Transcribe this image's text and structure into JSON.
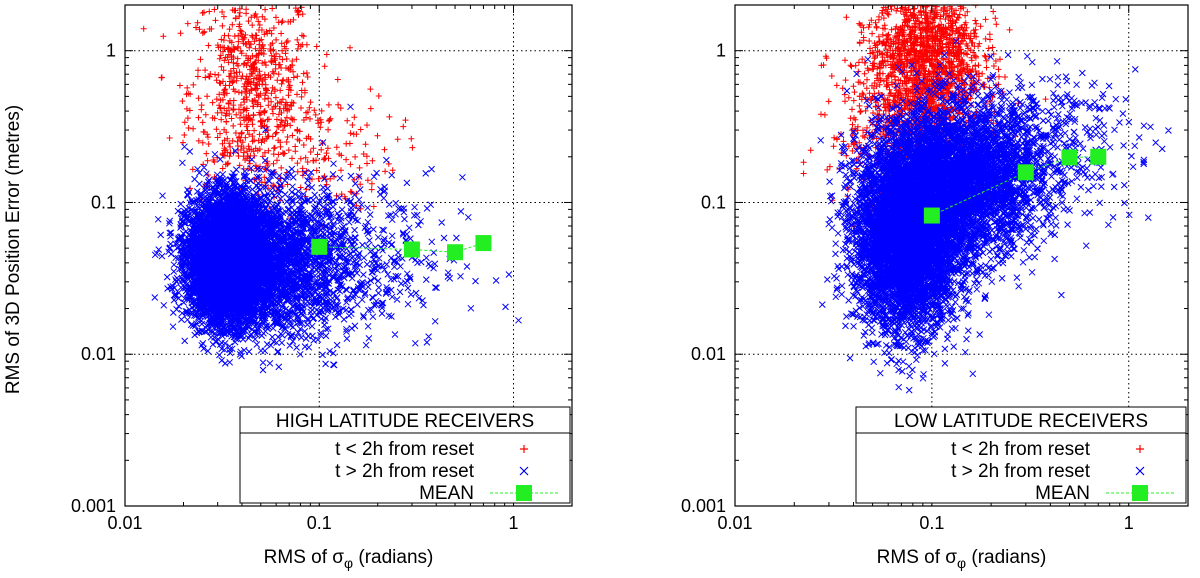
{
  "chart_data": [
    {
      "type": "scatter",
      "panel": "left",
      "xscale": "log",
      "yscale": "log",
      "xlim": [
        0.01,
        2
      ],
      "ylim": [
        0.001,
        2
      ],
      "grid": true,
      "xlabel": "RMS of σφ (radians)",
      "ylabel": "RMS of 3D Position Error (metres)",
      "xticks": [
        "0.01",
        "0.1",
        "1"
      ],
      "yticks": [
        "0.001",
        "0.01",
        "0.1",
        "1"
      ],
      "legend_title": "HIGH LATITUDE RECEIVERS",
      "legend_position": "bottom-right",
      "series": [
        {
          "name": "t < 2h from reset",
          "marker": "plus",
          "color": "#ff0000",
          "clusters": [
            {
              "x_center": 0.045,
              "x_spread": 0.16,
              "y_center": 0.55,
              "y_spread": 0.35,
              "count": 700
            },
            {
              "x_center": 0.09,
              "x_spread": 0.22,
              "y_center": 0.22,
              "y_spread": 0.2,
              "count": 150
            }
          ]
        },
        {
          "name": "t > 2h from reset",
          "marker": "cross",
          "color": "#0000ff",
          "clusters": [
            {
              "x_center": 0.034,
              "x_spread": 0.1,
              "y_center": 0.042,
              "y_spread": 0.2,
              "count": 9000
            },
            {
              "x_center": 0.06,
              "x_spread": 0.2,
              "y_center": 0.04,
              "y_spread": 0.24,
              "count": 2000
            },
            {
              "x_center": 0.15,
              "x_spread": 0.28,
              "y_center": 0.04,
              "y_spread": 0.28,
              "count": 350
            }
          ]
        },
        {
          "name": "MEAN",
          "marker": "square",
          "color": "#22ee22",
          "x": [
            0.1,
            0.3,
            0.5,
            0.7
          ],
          "y": [
            0.051,
            0.049,
            0.047,
            0.054
          ]
        }
      ]
    },
    {
      "type": "scatter",
      "panel": "right",
      "xscale": "log",
      "yscale": "log",
      "xlim": [
        0.01,
        2
      ],
      "ylim": [
        0.001,
        2
      ],
      "grid": true,
      "xlabel": "RMS of σφ (radians)",
      "ylabel": "",
      "xticks": [
        "0.01",
        "0.1",
        "1"
      ],
      "yticks": [
        "0.001",
        "0.01",
        "0.1",
        "1"
      ],
      "legend_title": "LOW LATITUDE RECEIVERS",
      "legend_position": "bottom-right",
      "series": [
        {
          "name": "t < 2h from reset",
          "marker": "plus",
          "color": "#ff0000",
          "clusters": [
            {
              "x_center": 0.095,
              "x_spread": 0.14,
              "y_center": 0.9,
              "y_spread": 0.3,
              "count": 1600
            },
            {
              "x_center": 0.07,
              "x_spread": 0.18,
              "y_center": 0.35,
              "y_spread": 0.3,
              "count": 500
            }
          ]
        },
        {
          "name": "t > 2h from reset",
          "marker": "cross",
          "color": "#0000ff",
          "clusters": [
            {
              "x_center": 0.075,
              "x_spread": 0.13,
              "y_center": 0.06,
              "y_spread": 0.3,
              "count": 9000
            },
            {
              "x_center": 0.14,
              "x_spread": 0.2,
              "y_center": 0.14,
              "y_spread": 0.25,
              "count": 3500
            },
            {
              "x_center": 0.35,
              "x_spread": 0.24,
              "y_center": 0.25,
              "y_spread": 0.22,
              "count": 400
            }
          ]
        },
        {
          "name": "MEAN",
          "marker": "square",
          "color": "#22ee22",
          "x": [
            0.1,
            0.3,
            0.5,
            0.7
          ],
          "y": [
            0.082,
            0.158,
            0.198,
            0.2
          ]
        }
      ]
    }
  ]
}
